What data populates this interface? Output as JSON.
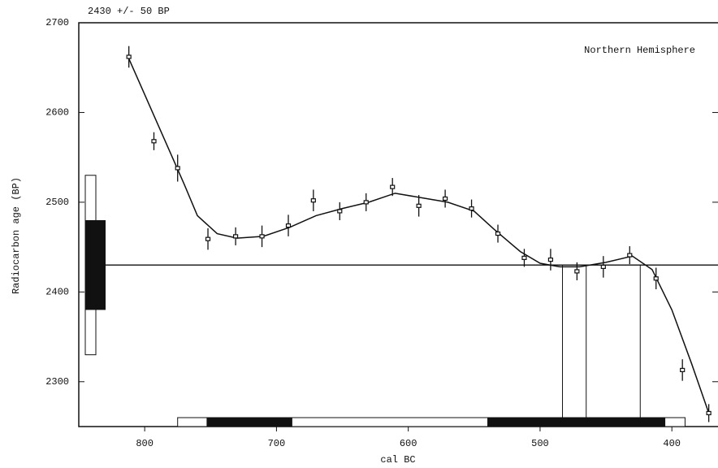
{
  "chart_data": {
    "type": "line",
    "title": "2430 +/- 50 BP",
    "annotation": "Northern Hemisphere",
    "x_label": "cal BC",
    "y_label": "Radiocarbon age (BP)",
    "xlim": [
      850,
      365
    ],
    "ylim": [
      2250,
      2700
    ],
    "xticks": [
      800,
      700,
      600,
      500,
      400
    ],
    "yticks": [
      2700,
      2600,
      2500,
      2400,
      2300
    ],
    "measured_age": 2430,
    "age_1sigma": [
      2380,
      2480
    ],
    "age_2sigma": [
      2330,
      2530
    ],
    "cal_2sigma": [
      [
        775,
        390
      ]
    ],
    "cal_1sigma": [
      [
        753,
        688
      ],
      [
        540,
        405
      ]
    ],
    "intersections": [
      483,
      465,
      424
    ],
    "color": "#111111",
    "series": [
      {
        "x": [
          812,
          793,
          775,
          752,
          731,
          711,
          691,
          672,
          652,
          632,
          612,
          592,
          572,
          552,
          532,
          512,
          492,
          472,
          452,
          432,
          412,
          392,
          372
        ],
        "values": [
          2662,
          2568,
          2538,
          2459,
          2462,
          2462,
          2474,
          2502,
          2490,
          2500,
          2517,
          2496,
          2504,
          2493,
          2465,
          2438,
          2436,
          2423,
          2428,
          2441,
          2415,
          2313,
          2265
        ],
        "errors": [
          12,
          10,
          15,
          12,
          10,
          12,
          12,
          12,
          10,
          10,
          10,
          12,
          10,
          10,
          10,
          10,
          12,
          10,
          12,
          10,
          12,
          12,
          10
        ]
      },
      {
        "x": [
          812,
          800,
          785,
          770,
          760,
          745,
          730,
          710,
          690,
          670,
          650,
          630,
          610,
          590,
          570,
          550,
          535,
          515,
          500,
          485,
          470,
          450,
          430,
          415,
          400,
          385,
          372
        ],
        "values": [
          2660,
          2620,
          2570,
          2520,
          2485,
          2465,
          2460,
          2462,
          2472,
          2485,
          2493,
          2500,
          2510,
          2505,
          2500,
          2490,
          2470,
          2445,
          2432,
          2428,
          2428,
          2433,
          2440,
          2425,
          2380,
          2320,
          2265
        ]
      }
    ]
  }
}
